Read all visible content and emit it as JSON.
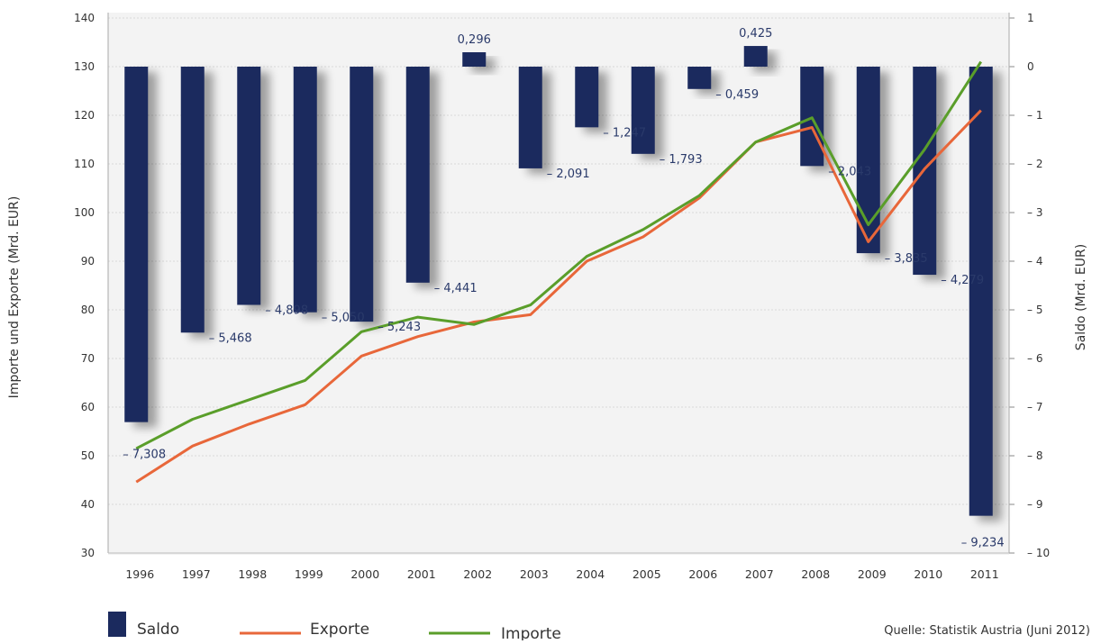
{
  "chart_data": {
    "type": "bar+line",
    "categories": [
      "1996",
      "1997",
      "1998",
      "1999",
      "2000",
      "2001",
      "2002",
      "2003",
      "2004",
      "2005",
      "2006",
      "2007",
      "2008",
      "2009",
      "2010",
      "2011"
    ],
    "left_axis": {
      "label": "Importe und Exporte (Mrd. EUR)",
      "ylim": [
        30,
        140
      ],
      "ticks": [
        30,
        40,
        50,
        60,
        70,
        80,
        90,
        100,
        110,
        120,
        130,
        140
      ]
    },
    "right_axis": {
      "label": "Saldo (Mrd. EUR)",
      "ylim": [
        -10,
        1
      ],
      "ticks": [
        1,
        0,
        -1,
        -2,
        -3,
        -4,
        -5,
        -6,
        -7,
        -8,
        -9,
        -10
      ],
      "tick_labels": [
        "1",
        "0",
        "– 1",
        "– 2",
        "– 3",
        "– 4",
        "– 5",
        "– 6",
        "– 7",
        "– 8",
        "– 9",
        "– 10"
      ]
    },
    "series": [
      {
        "name": "Saldo",
        "type": "bar",
        "axis": "right",
        "color": "#1b2a5e",
        "values": [
          -7.308,
          -5.468,
          -4.898,
          -5.05,
          -5.243,
          -4.441,
          0.296,
          -2.091,
          -1.247,
          -1.793,
          -0.459,
          0.425,
          -2.043,
          -3.835,
          -4.279,
          -9.234
        ],
        "labels": [
          "– 7,308",
          "– 5,468",
          "– 4,898",
          "– 5,050",
          "– 5,243",
          "– 4,441",
          "0,296",
          "– 2,091",
          "– 1,247",
          "– 1,793",
          "– 0,459",
          "0,425",
          "– 2,043",
          "– 3,835",
          "– 4,279",
          "– 9,234"
        ]
      },
      {
        "name": "Exporte",
        "type": "line",
        "axis": "left",
        "color": "#e8673a",
        "values": [
          44.6,
          52.0,
          56.5,
          60.5,
          70.5,
          74.5,
          77.5,
          79.0,
          90.0,
          95.0,
          103.0,
          114.5,
          117.5,
          94.0,
          109.0,
          121.0
        ]
      },
      {
        "name": "Importe",
        "type": "line",
        "axis": "left",
        "color": "#5a9e2a",
        "values": [
          51.5,
          57.5,
          61.5,
          65.5,
          75.5,
          78.5,
          77.0,
          81.0,
          91.0,
          96.5,
          103.5,
          114.5,
          119.5,
          97.5,
          113.0,
          131.0
        ]
      }
    ],
    "grid": true,
    "legend_position": "bottom-left",
    "source": "Quelle: Statistik Austria (Juni 2012)"
  }
}
